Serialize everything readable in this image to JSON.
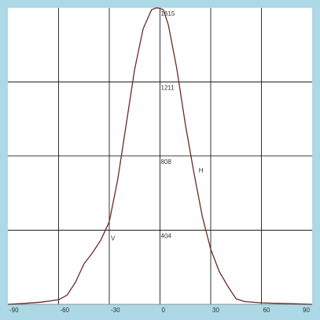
{
  "chart_data": {
    "type": "line",
    "title": "",
    "xlabel": "",
    "ylabel": "",
    "xlim": [
      -90,
      90
    ],
    "ylim": [
      0,
      1615
    ],
    "grid": true,
    "x_ticks": [
      -90,
      -60,
      -30,
      0,
      30,
      60,
      90
    ],
    "x_tick_labels": [
      "-90",
      "-60",
      "-30",
      "0",
      "30",
      "60",
      "90"
    ],
    "y_ticks": [
      404,
      808,
      1211,
      1615
    ],
    "y_tick_labels": [
      "404",
      "808",
      "1211",
      "1615"
    ],
    "series": [
      {
        "label": "V",
        "label_at": [
          -30,
          360
        ],
        "x": [
          -90,
          -80,
          -70,
          -60,
          -55,
          -50,
          -45,
          -40,
          -35,
          -30,
          -25,
          -20,
          -15,
          -10,
          -5,
          -2,
          0
        ],
        "y": [
          0,
          5,
          12,
          25,
          50,
          120,
          220,
          280,
          350,
          450,
          680,
          980,
          1280,
          1500,
          1605,
          1615,
          1612
        ]
      },
      {
        "label": "H",
        "label_at": [
          22,
          730
        ],
        "x": [
          0,
          2,
          5,
          10,
          15,
          20,
          25,
          30,
          35,
          40,
          45,
          50,
          60,
          70,
          80,
          90
        ],
        "y": [
          1612,
          1605,
          1520,
          1280,
          980,
          720,
          480,
          300,
          180,
          100,
          30,
          15,
          8,
          5,
          3,
          0
        ]
      }
    ],
    "line_color": "#6b2a2a",
    "grid_color": "#000000",
    "background": "#ffffff",
    "frame_color": "#add8e6"
  }
}
